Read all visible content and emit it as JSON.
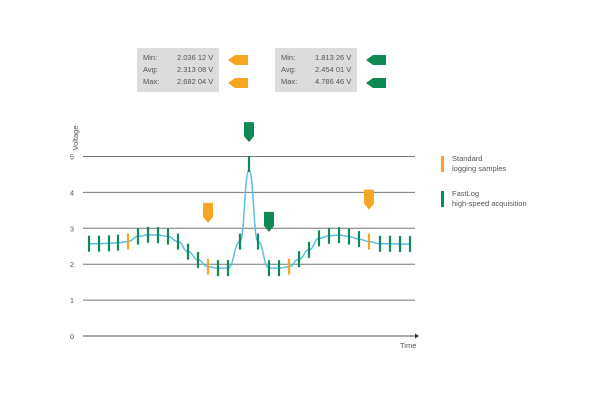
{
  "stats_standard": {
    "color": "#f5a623",
    "rows": [
      {
        "label": "Min:",
        "value": "2.036 12 V"
      },
      {
        "label": "Avg:",
        "value": "2.313 08 V"
      },
      {
        "label": "Max:",
        "value": "2.682 04 V"
      }
    ]
  },
  "stats_fastlog": {
    "color": "#0f8a55",
    "rows": [
      {
        "label": "Min:",
        "value": "1.813 26 V"
      },
      {
        "label": "Avg:",
        "value": "2.454 01 V"
      },
      {
        "label": "Max:",
        "value": "4.786 46 V"
      }
    ]
  },
  "legend": [
    {
      "line1": "Standard",
      "line2": "logging samples",
      "color": "#f5a623"
    },
    {
      "line1": "FastLog",
      "line2": "high-speed acquisition",
      "color": "#0f8a55"
    }
  ],
  "chart_data": {
    "type": "line",
    "xlabel": "Time",
    "ylabel": "Voltage",
    "ylim": [
      0,
      5.5
    ],
    "yticks": [
      "0",
      "1",
      "2",
      "3",
      "4",
      "5"
    ],
    "grid": true,
    "curve_color": "#5bc0e8",
    "samples": [
      2.57,
      2.57,
      2.58,
      2.6,
      2.63,
      2.77,
      2.82,
      2.81,
      2.77,
      2.63,
      2.35,
      2.12,
      1.93,
      1.89,
      1.89,
      2.63,
      4.79,
      2.63,
      1.89,
      1.89,
      1.93,
      2.14,
      2.4,
      2.72,
      2.79,
      2.81,
      2.77,
      2.7,
      2.63,
      2.57,
      2.57,
      2.56,
      2.56
    ],
    "standard_sample_indices": [
      4,
      12,
      20,
      28
    ],
    "markers": [
      {
        "series": "standard",
        "index": 12,
        "value": 3.15
      },
      {
        "series": "standard",
        "index": 28,
        "value": 3.52
      },
      {
        "series": "fastlog",
        "index": 16,
        "value": 5.4
      },
      {
        "series": "fastlog",
        "index": 18,
        "value": 2.9
      }
    ]
  }
}
